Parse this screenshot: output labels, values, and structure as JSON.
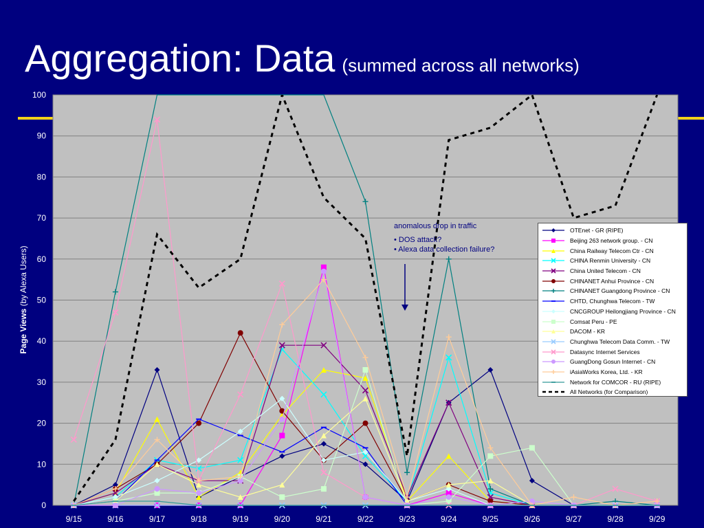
{
  "title": {
    "main": "Aggregation: Data",
    "sub": "(summed across all networks)"
  },
  "colors": {
    "background": "#00007f",
    "plot_area": "#c0c0c0",
    "accent_rule": "#f2d21a"
  },
  "annotation": {
    "heading": "anomalous drop in traffic",
    "bullets": [
      "• DOS attack?",
      "• Alexa data collection failure?"
    ]
  },
  "chart_data": {
    "type": "line",
    "ylabel_bold": "Page Views",
    "ylabel_rest": " (by Alexa Users)",
    "ylim": [
      0,
      100
    ],
    "yticks": [
      "0",
      "10",
      "20",
      "30",
      "40",
      "50",
      "60",
      "70",
      "80",
      "90",
      "100"
    ],
    "categories": [
      "9/15",
      "9/16",
      "9/17",
      "9/18",
      "9/19",
      "9/20",
      "9/21",
      "9/22",
      "9/23",
      "9/24",
      "9/25",
      "9/26",
      "9/27",
      "9/28",
      "9/29"
    ],
    "grid": true,
    "legend_position": "right",
    "series": [
      {
        "name": "OTEnet - GR (RIPE)",
        "color": "#000080",
        "marker": "diamond",
        "values": [
          0,
          5,
          33,
          2,
          7,
          12,
          15,
          10,
          1,
          25,
          33,
          6,
          0,
          0,
          0
        ]
      },
      {
        "name": "Beijing 263 network group. - CN",
        "color": "#ff00ff",
        "marker": "square",
        "values": [
          0,
          0,
          0,
          0,
          0,
          17,
          58,
          2,
          0,
          3,
          0,
          0,
          0,
          0,
          0
        ]
      },
      {
        "name": "China Railway Telecom Ctr - CN",
        "color": "#ffff00",
        "marker": "triangle",
        "values": [
          0,
          3,
          21,
          2,
          8,
          22,
          33,
          31,
          1,
          12,
          1,
          0,
          0,
          0,
          0
        ]
      },
      {
        "name": "CHINA Renmin University - CN",
        "color": "#00ffff",
        "marker": "x",
        "values": [
          0,
          2,
          11,
          9,
          11,
          38,
          27,
          12,
          1,
          36,
          3,
          0,
          0,
          0,
          0
        ]
      },
      {
        "name": "China United Telecom - CN",
        "color": "#800080",
        "marker": "x",
        "values": [
          0,
          3,
          10,
          6,
          6,
          39,
          39,
          28,
          2,
          25,
          2,
          0,
          0,
          0,
          0
        ]
      },
      {
        "name": "CHINANET Anhui Province - CN",
        "color": "#800000",
        "marker": "circle",
        "values": [
          0,
          4,
          10,
          20,
          42,
          23,
          11,
          20,
          1,
          5,
          1,
          0,
          0,
          0,
          0
        ]
      },
      {
        "name": "CHINANET Guangdong Province  - CN",
        "color": "#008080",
        "marker": "plus",
        "values": [
          0,
          52,
          100,
          100,
          100,
          100,
          100,
          74,
          8,
          60,
          4,
          0,
          0,
          1,
          0
        ]
      },
      {
        "name": "CHTD, Chunghwa Telecom - TW",
        "color": "#0000ff",
        "marker": "dash",
        "values": [
          0,
          1,
          11,
          21,
          17,
          13,
          19,
          14,
          0,
          0,
          0,
          0,
          0,
          0,
          0
        ]
      },
      {
        "name": "CNCGROUP Heilongjiang Province - CN",
        "color": "#ccffff",
        "marker": "diamond",
        "values": [
          0,
          2,
          6,
          11,
          18,
          26,
          11,
          13,
          1,
          4,
          0,
          0,
          0,
          0,
          0
        ]
      },
      {
        "name": "Comsat Peru - PE",
        "color": "#ccffcc",
        "marker": "square",
        "values": [
          0,
          1,
          3,
          3,
          7,
          2,
          4,
          33,
          0,
          1,
          12,
          14,
          0,
          0,
          0
        ]
      },
      {
        "name": "DACOM - KR",
        "color": "#ffff99",
        "marker": "triangle",
        "values": [
          0,
          1,
          10,
          5,
          2,
          5,
          17,
          26,
          1,
          5,
          6,
          0,
          0,
          0,
          0
        ]
      },
      {
        "name": "Chunghwa Telecom Data Comm. - TW",
        "color": "#99ccff",
        "marker": "x",
        "values": [
          0,
          0,
          0,
          0,
          0,
          0,
          0,
          0,
          0,
          0,
          0,
          0,
          0,
          0,
          0
        ]
      },
      {
        "name": "Datasync Internet Services",
        "color": "#ff99cc",
        "marker": "x",
        "values": [
          16,
          47,
          94,
          6,
          27,
          54,
          8,
          2,
          0,
          0,
          0,
          0,
          0,
          4,
          1
        ]
      },
      {
        "name": "GuangDong Gosun Internet  - CN",
        "color": "#cc99ff",
        "marker": "circle",
        "values": [
          0,
          0,
          4,
          3,
          6,
          21,
          57,
          2,
          0,
          2,
          0,
          1,
          0,
          0,
          0
        ]
      },
      {
        "name": "iAsiaWorks Korea, Ltd. - KR",
        "color": "#ffcc99",
        "marker": "plus",
        "values": [
          0,
          4,
          16,
          6,
          7,
          44,
          55,
          36,
          2,
          41,
          14,
          0,
          2,
          0,
          1
        ]
      },
      {
        "name": "Network for COMCOR - RU (RIPE)",
        "color": "#339999",
        "marker": "dash",
        "values": [
          0,
          1,
          1,
          0,
          0,
          0,
          0,
          0,
          0,
          0,
          0,
          0,
          0,
          0,
          0
        ]
      },
      {
        "name": "All Networks (for Comparison)",
        "color": "#000000",
        "marker": "none",
        "dashed": true,
        "values": [
          1,
          16,
          66,
          53,
          60,
          100,
          75,
          65,
          12,
          89,
          92,
          100,
          70,
          73,
          100
        ]
      }
    ]
  }
}
